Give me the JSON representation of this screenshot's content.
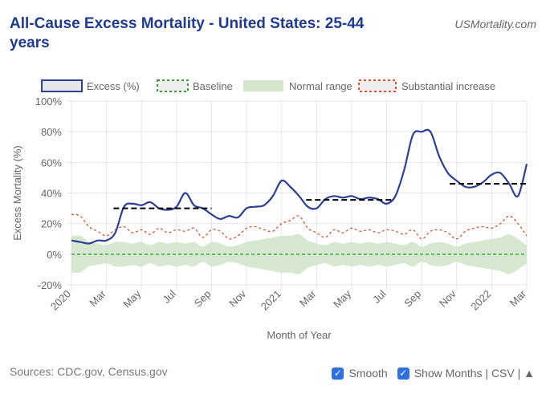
{
  "header": {
    "title": "All-Cause Excess Mortality - United States: 25-44 years",
    "brand": "USMortality.com"
  },
  "footer": {
    "sources": "Sources: CDC.gov, Census.gov",
    "smooth_label": "Smooth",
    "show_months_label": "Show Months | CSV | ▲",
    "smooth_checked": true,
    "show_months_checked": true
  },
  "chart_data": {
    "type": "line",
    "title": "All-Cause Excess Mortality - United States: 25-44 years",
    "xlabel": "Month of Year",
    "ylabel": "Excess Mortality (%)",
    "ylim": [
      -20,
      100
    ],
    "yticks": [
      -20,
      0,
      20,
      40,
      60,
      80,
      100
    ],
    "ytick_labels": [
      "-20%",
      "0%",
      "20%",
      "40%",
      "60%",
      "80%",
      "100%"
    ],
    "xtick_labels": [
      "2020",
      "Mar",
      "May",
      "Jul",
      "Sep",
      "Nov",
      "2021",
      "Mar",
      "May",
      "Jul",
      "Sep",
      "Nov",
      "2022",
      "Mar"
    ],
    "x_unit": "months since Jan 2020",
    "x_step": 0.5,
    "legend": [
      "Excess (%)",
      "Baseline",
      "Normal range",
      "Substantial increase"
    ],
    "legend_position": "top",
    "colors": {
      "excess": "#2b3f94",
      "baseline": "#3a9a3a",
      "normal": "#d3e6cc",
      "substantial": "#d9532c",
      "average": "#000000"
    },
    "excess": [
      9,
      8,
      7,
      9,
      9,
      14,
      31,
      33,
      32,
      34,
      30,
      29,
      31,
      40,
      32,
      30,
      26,
      23,
      25,
      24,
      30,
      31,
      32,
      38,
      48,
      44,
      38,
      31,
      30,
      36,
      38,
      37,
      38,
      36,
      37,
      36,
      33,
      38,
      55,
      78,
      80,
      80,
      64,
      53,
      48,
      44,
      44,
      47,
      52,
      53,
      46,
      38,
      59
    ],
    "substantial_increase": [
      26,
      25,
      18,
      15,
      12,
      16,
      18,
      14,
      16,
      13,
      17,
      14,
      16,
      15,
      17,
      11,
      16,
      15,
      10,
      12,
      17,
      18,
      16,
      15,
      20,
      22,
      25,
      17,
      14,
      11,
      16,
      14,
      17,
      15,
      16,
      14,
      16,
      15,
      13,
      16,
      10,
      15,
      16,
      14,
      10,
      15,
      17,
      18,
      17,
      20,
      25,
      20,
      12
    ],
    "normal_range_half_width": [
      12,
      12,
      8,
      7,
      6,
      8,
      8,
      7,
      8,
      6,
      8,
      7,
      8,
      7,
      8,
      5,
      8,
      7,
      5,
      6,
      8,
      9,
      10,
      11,
      12,
      12,
      13,
      9,
      7,
      6,
      8,
      7,
      8,
      7,
      8,
      7,
      8,
      7,
      6,
      8,
      5,
      7,
      8,
      7,
      5,
      7,
      8,
      9,
      10,
      11,
      13,
      10,
      6
    ],
    "baseline": 0,
    "period_averages": [
      {
        "start": 2.4,
        "end": 8,
        "value": 30
      },
      {
        "start": 13.4,
        "end": 18.3,
        "value": 35.5
      },
      {
        "start": 21.6,
        "end": 26,
        "value": 46
      }
    ]
  }
}
